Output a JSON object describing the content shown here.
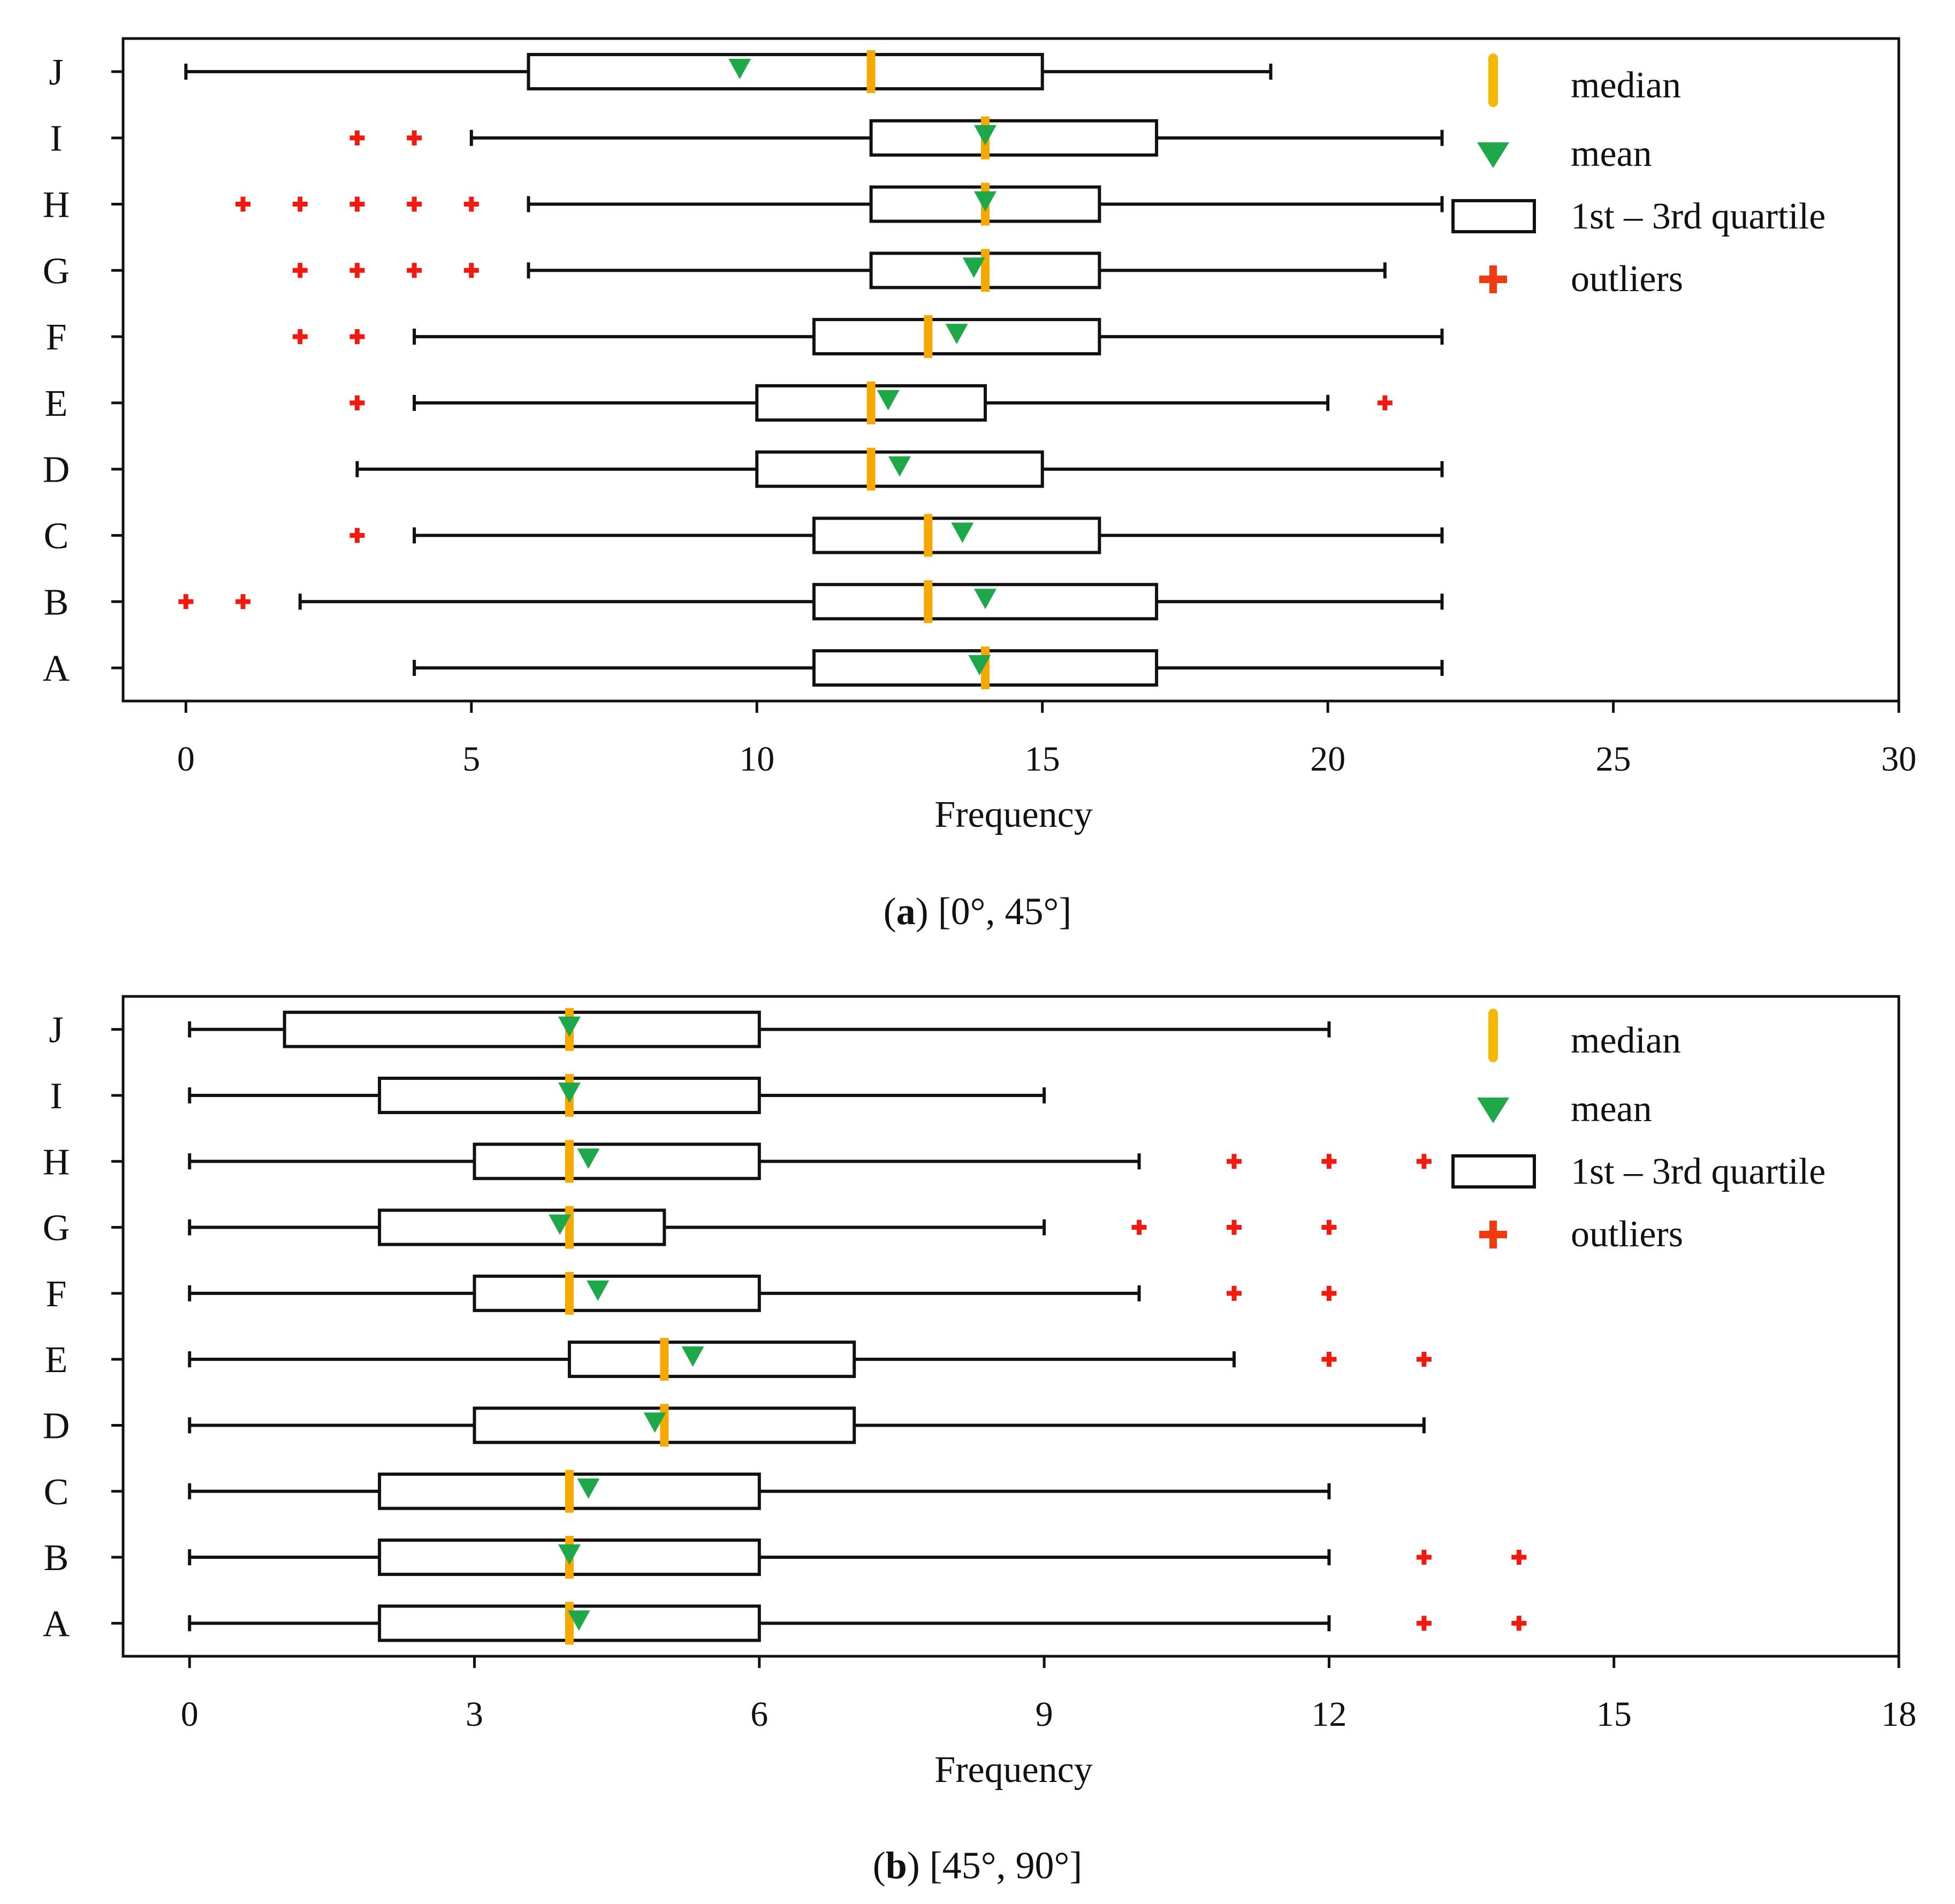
{
  "colors": {
    "median": "#F5A900",
    "mean": "#1FA84A",
    "outlier": "#F01A10",
    "box": "#111111",
    "legend_median": "#F5B800",
    "legend_outlier": "#F03A10"
  },
  "legend": {
    "median": "median",
    "mean": "mean",
    "quartile": "1st – 3rd quartile",
    "outliers": "outliers"
  },
  "chart_data": [
    {
      "type": "boxplot",
      "caption_letter": "a",
      "caption_rest": "[0°, 45°]",
      "xlabel": "Frequency",
      "xlim": [
        -1.1,
        30
      ],
      "xticks": [
        0,
        5,
        10,
        15,
        20,
        25,
        30
      ],
      "categories": [
        "A",
        "B",
        "C",
        "D",
        "E",
        "F",
        "G",
        "H",
        "I",
        "J"
      ],
      "series": [
        {
          "label": "A",
          "whisker_low": 4,
          "q1": 11,
          "median": 14,
          "q3": 17,
          "whisker_high": 22,
          "mean": 13.9,
          "outliers": []
        },
        {
          "label": "B",
          "whisker_low": 2,
          "q1": 11,
          "median": 13,
          "q3": 17,
          "whisker_high": 22,
          "mean": 14.0,
          "outliers": [
            0,
            1
          ]
        },
        {
          "label": "C",
          "whisker_low": 4,
          "q1": 11,
          "median": 13,
          "q3": 16,
          "whisker_high": 22,
          "mean": 13.6,
          "outliers": [
            3
          ]
        },
        {
          "label": "D",
          "whisker_low": 3,
          "q1": 10,
          "median": 12,
          "q3": 15,
          "whisker_high": 22,
          "mean": 12.5,
          "outliers": []
        },
        {
          "label": "E",
          "whisker_low": 4,
          "q1": 10,
          "median": 12,
          "q3": 14,
          "whisker_high": 20,
          "mean": 12.3,
          "outliers": [
            3,
            21
          ]
        },
        {
          "label": "F",
          "whisker_low": 4,
          "q1": 11,
          "median": 13,
          "q3": 16,
          "whisker_high": 22,
          "mean": 13.5,
          "outliers": [
            2,
            3
          ]
        },
        {
          "label": "G",
          "whisker_low": 6,
          "q1": 12,
          "median": 14,
          "q3": 16,
          "whisker_high": 21,
          "mean": 13.8,
          "outliers": [
            2,
            3,
            4,
            5
          ]
        },
        {
          "label": "H",
          "whisker_low": 6,
          "q1": 12,
          "median": 14,
          "q3": 16,
          "whisker_high": 22,
          "mean": 14.0,
          "outliers": [
            1,
            2,
            3,
            4,
            5
          ]
        },
        {
          "label": "I",
          "whisker_low": 5,
          "q1": 12,
          "median": 14,
          "q3": 17,
          "whisker_high": 22,
          "mean": 14.0,
          "outliers": [
            3,
            4
          ]
        },
        {
          "label": "J",
          "whisker_low": 0,
          "q1": 6,
          "median": 12,
          "q3": 15,
          "whisker_high": 19,
          "mean": 9.7,
          "outliers": []
        }
      ]
    },
    {
      "type": "boxplot",
      "caption_letter": "b",
      "caption_rest": "[45°, 90°]",
      "xlabel": "Frequency",
      "xlim": [
        -0.7,
        18
      ],
      "xticks": [
        0,
        3,
        6,
        9,
        12,
        15,
        18
      ],
      "categories": [
        "A",
        "B",
        "C",
        "D",
        "E",
        "F",
        "G",
        "H",
        "I",
        "J"
      ],
      "series": [
        {
          "label": "A",
          "whisker_low": 0,
          "q1": 2,
          "median": 4,
          "q3": 6,
          "whisker_high": 12,
          "mean": 4.1,
          "outliers": [
            13,
            14
          ]
        },
        {
          "label": "B",
          "whisker_low": 0,
          "q1": 2,
          "median": 4,
          "q3": 6,
          "whisker_high": 12,
          "mean": 4.0,
          "outliers": [
            13,
            14
          ]
        },
        {
          "label": "C",
          "whisker_low": 0,
          "q1": 2,
          "median": 4,
          "q3": 6,
          "whisker_high": 12,
          "mean": 4.2,
          "outliers": []
        },
        {
          "label": "D",
          "whisker_low": 0,
          "q1": 3,
          "median": 5,
          "q3": 7,
          "whisker_high": 13,
          "mean": 4.9,
          "outliers": []
        },
        {
          "label": "E",
          "whisker_low": 0,
          "q1": 4,
          "median": 5,
          "q3": 7,
          "whisker_high": 11,
          "mean": 5.3,
          "outliers": [
            12,
            13
          ]
        },
        {
          "label": "F",
          "whisker_low": 0,
          "q1": 3,
          "median": 4,
          "q3": 6,
          "whisker_high": 10,
          "mean": 4.3,
          "outliers": [
            11,
            12
          ]
        },
        {
          "label": "G",
          "whisker_low": 0,
          "q1": 2,
          "median": 4,
          "q3": 5,
          "whisker_high": 9,
          "mean": 3.9,
          "outliers": [
            10,
            11,
            12
          ]
        },
        {
          "label": "H",
          "whisker_low": 0,
          "q1": 3,
          "median": 4,
          "q3": 6,
          "whisker_high": 10,
          "mean": 4.2,
          "outliers": [
            11,
            12,
            13
          ]
        },
        {
          "label": "I",
          "whisker_low": 0,
          "q1": 2,
          "median": 4,
          "q3": 6,
          "whisker_high": 9,
          "mean": 4.0,
          "outliers": []
        },
        {
          "label": "J",
          "whisker_low": 0,
          "q1": 1,
          "median": 4,
          "q3": 6,
          "whisker_high": 12,
          "mean": 4.0,
          "outliers": []
        }
      ]
    }
  ]
}
